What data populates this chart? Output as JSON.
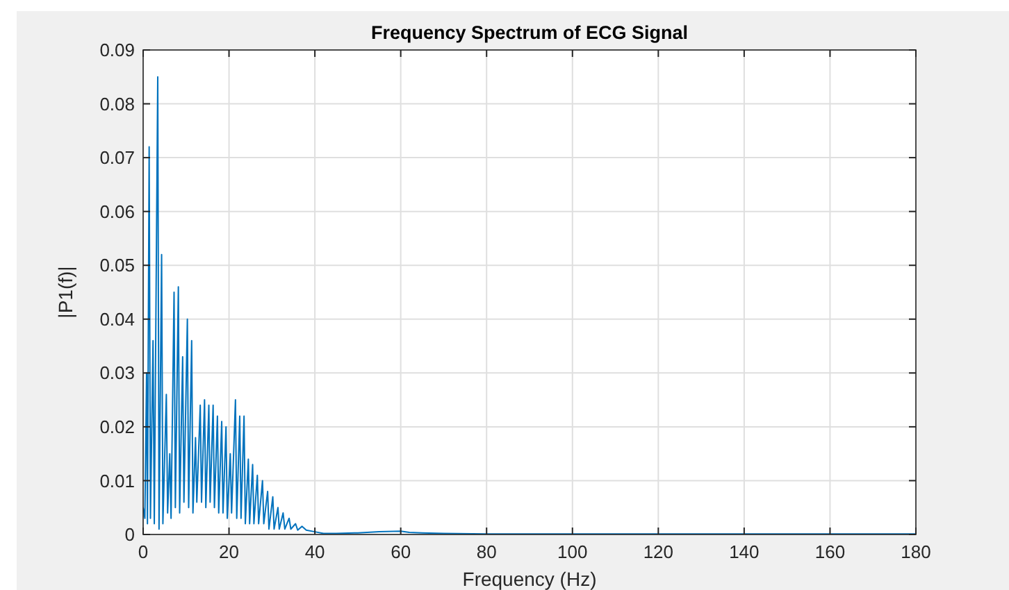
{
  "chart_data": {
    "type": "line",
    "title": "Frequency Spectrum of ECG Signal",
    "xlabel": "Frequency (Hz)",
    "ylabel": "|P1(f)|",
    "xlim": [
      0,
      180
    ],
    "xticks": [
      0,
      20,
      40,
      60,
      80,
      100,
      120,
      140,
      160,
      180
    ],
    "ylim": [
      0,
      0.09
    ],
    "yticks": [
      0,
      0.01,
      0.02,
      0.03,
      0.04,
      0.05,
      0.06,
      0.07,
      0.08,
      0.09
    ],
    "grid": true,
    "marker": "none",
    "line_style": "solid",
    "series": [
      {
        "color": "#0072bd",
        "x": [
          0,
          0.4,
          0.8,
          1.0,
          1.4,
          1.7,
          2.3,
          2.6,
          3.4,
          3.7,
          4.3,
          4.6,
          5.4,
          5.7,
          6.2,
          6.5,
          7.2,
          7.5,
          8.2,
          8.5,
          9.2,
          9.5,
          10.3,
          10.6,
          11.3,
          11.6,
          12.2,
          12.5,
          13.3,
          13.6,
          14.3,
          14.6,
          15.3,
          15.6,
          16.3,
          16.6,
          17.3,
          17.6,
          18.3,
          18.6,
          19.3,
          19.6,
          20.3,
          20.6,
          21.5,
          21.8,
          22.5,
          22.8,
          23.5,
          23.8,
          24.5,
          24.8,
          25.5,
          25.8,
          26.6,
          26.9,
          27.8,
          28.1,
          29,
          29.3,
          30.2,
          30.5,
          31.4,
          31.7,
          32.6,
          33,
          34,
          34.4,
          35.5,
          36,
          37,
          38,
          40,
          42,
          45,
          50,
          55,
          60,
          62,
          65,
          70,
          80,
          100,
          140,
          180
        ],
        "values": [
          0.005,
          0.003,
          0.03,
          0.002,
          0.072,
          0.003,
          0.036,
          0.002,
          0.085,
          0.001,
          0.052,
          0.002,
          0.026,
          0.004,
          0.015,
          0.003,
          0.045,
          0.005,
          0.046,
          0.004,
          0.033,
          0.006,
          0.04,
          0.005,
          0.036,
          0.004,
          0.018,
          0.006,
          0.024,
          0.006,
          0.025,
          0.005,
          0.024,
          0.006,
          0.024,
          0.005,
          0.022,
          0.004,
          0.021,
          0.004,
          0.02,
          0.003,
          0.015,
          0.004,
          0.025,
          0.003,
          0.022,
          0.003,
          0.022,
          0.002,
          0.014,
          0.002,
          0.013,
          0.002,
          0.011,
          0.002,
          0.01,
          0.002,
          0.008,
          0.001,
          0.007,
          0.001,
          0.005,
          0.001,
          0.004,
          0.001,
          0.003,
          0.001,
          0.002,
          0.0008,
          0.0015,
          0.0008,
          0.0005,
          0.0002,
          0.0002,
          0.0003,
          0.0005,
          0.0006,
          0.0004,
          0.0003,
          0.0002,
          0.0001,
          0.0001,
          0.0001,
          0.0001
        ]
      }
    ]
  }
}
